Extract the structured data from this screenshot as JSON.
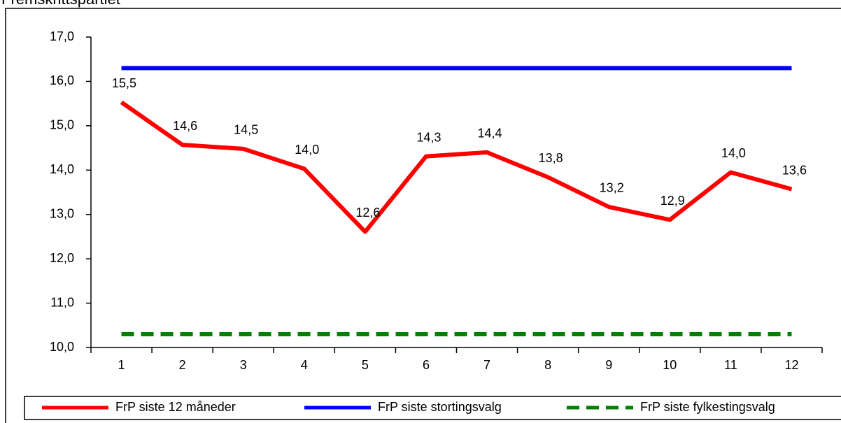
{
  "chart_data": {
    "type": "line",
    "title": "Fremskrittspartiet",
    "categories": [
      "1",
      "2",
      "3",
      "4",
      "5",
      "6",
      "7",
      "8",
      "9",
      "10",
      "11",
      "12"
    ],
    "series": [
      {
        "name": "FrP siste 12 måneder",
        "color": "#ff0000",
        "dash": false,
        "values": [
          15.53,
          14.57,
          14.48,
          14.03,
          12.61,
          14.31,
          14.4,
          13.84,
          13.17,
          12.88,
          13.95,
          13.57
        ],
        "value_labels": [
          "15,5",
          "14,6",
          "14,5",
          "14,0",
          "12,6",
          "14,3",
          "14,4",
          "13,8",
          "13,2",
          "12,9",
          "14,0",
          "13,6"
        ]
      },
      {
        "name": "FrP siste stortingsvalg",
        "color": "#0000ff",
        "dash": false,
        "values": [
          16.3,
          16.3,
          16.3,
          16.3,
          16.3,
          16.3,
          16.3,
          16.3,
          16.3,
          16.3,
          16.3,
          16.3
        ]
      },
      {
        "name": "FrP siste fylkestingsvalg",
        "color": "#008000",
        "dash": true,
        "values": [
          10.3,
          10.3,
          10.3,
          10.3,
          10.3,
          10.3,
          10.3,
          10.3,
          10.3,
          10.3,
          10.3,
          10.3
        ]
      }
    ],
    "ylim": [
      10,
      17
    ],
    "yticks": [
      {
        "value": 10,
        "label": "10,0"
      },
      {
        "value": 11,
        "label": "11,0"
      },
      {
        "value": 12,
        "label": "12,0"
      },
      {
        "value": 13,
        "label": "13,0"
      },
      {
        "value": 14,
        "label": "14,0"
      },
      {
        "value": 15,
        "label": "15,0"
      },
      {
        "value": 16,
        "label": "16,0"
      },
      {
        "value": 17,
        "label": "17,0"
      }
    ],
    "legend": "bottom"
  }
}
